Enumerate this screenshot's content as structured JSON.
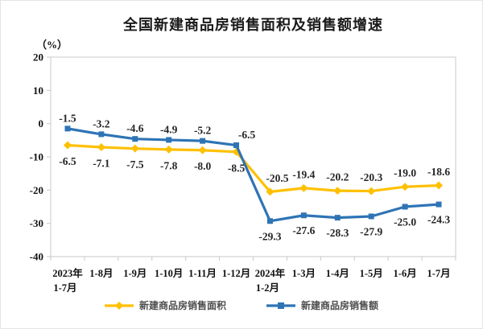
{
  "chart_data": {
    "type": "line",
    "title": "全国新建商品房销售面积及销售额增速",
    "unit_label": "（%）",
    "categories": [
      "2023年\n1-7月",
      "1-8月",
      "1-9月",
      "1-10月",
      "1-11月",
      "1-12月",
      "2024年\n1-2月",
      "1-3月",
      "1-4月",
      "1-5月",
      "1-6月",
      "1-7月"
    ],
    "series": [
      {
        "name": "新建商品房销售面积",
        "marker": "diamond",
        "color": "#FFC000",
        "values": [
          -6.5,
          -7.1,
          -7.5,
          -7.8,
          -8.0,
          -8.5,
          -20.5,
          -19.4,
          -20.2,
          -20.3,
          -19.0,
          -18.6
        ]
      },
      {
        "name": "新建商品房销售额",
        "marker": "square",
        "color": "#2E74B5",
        "values": [
          -1.5,
          -3.2,
          -4.6,
          -4.9,
          -5.2,
          -6.5,
          -29.3,
          -27.6,
          -28.3,
          -27.9,
          -25.0,
          -24.3
        ]
      }
    ],
    "ylim": [
      -40,
      20
    ],
    "yticks": [
      20,
      10,
      0,
      -10,
      -20,
      -30,
      -40
    ],
    "ytick_step": 10,
    "grid": false,
    "legend_position": "bottom",
    "axis_color": "#C9C9C9",
    "label_color": "#262626"
  }
}
